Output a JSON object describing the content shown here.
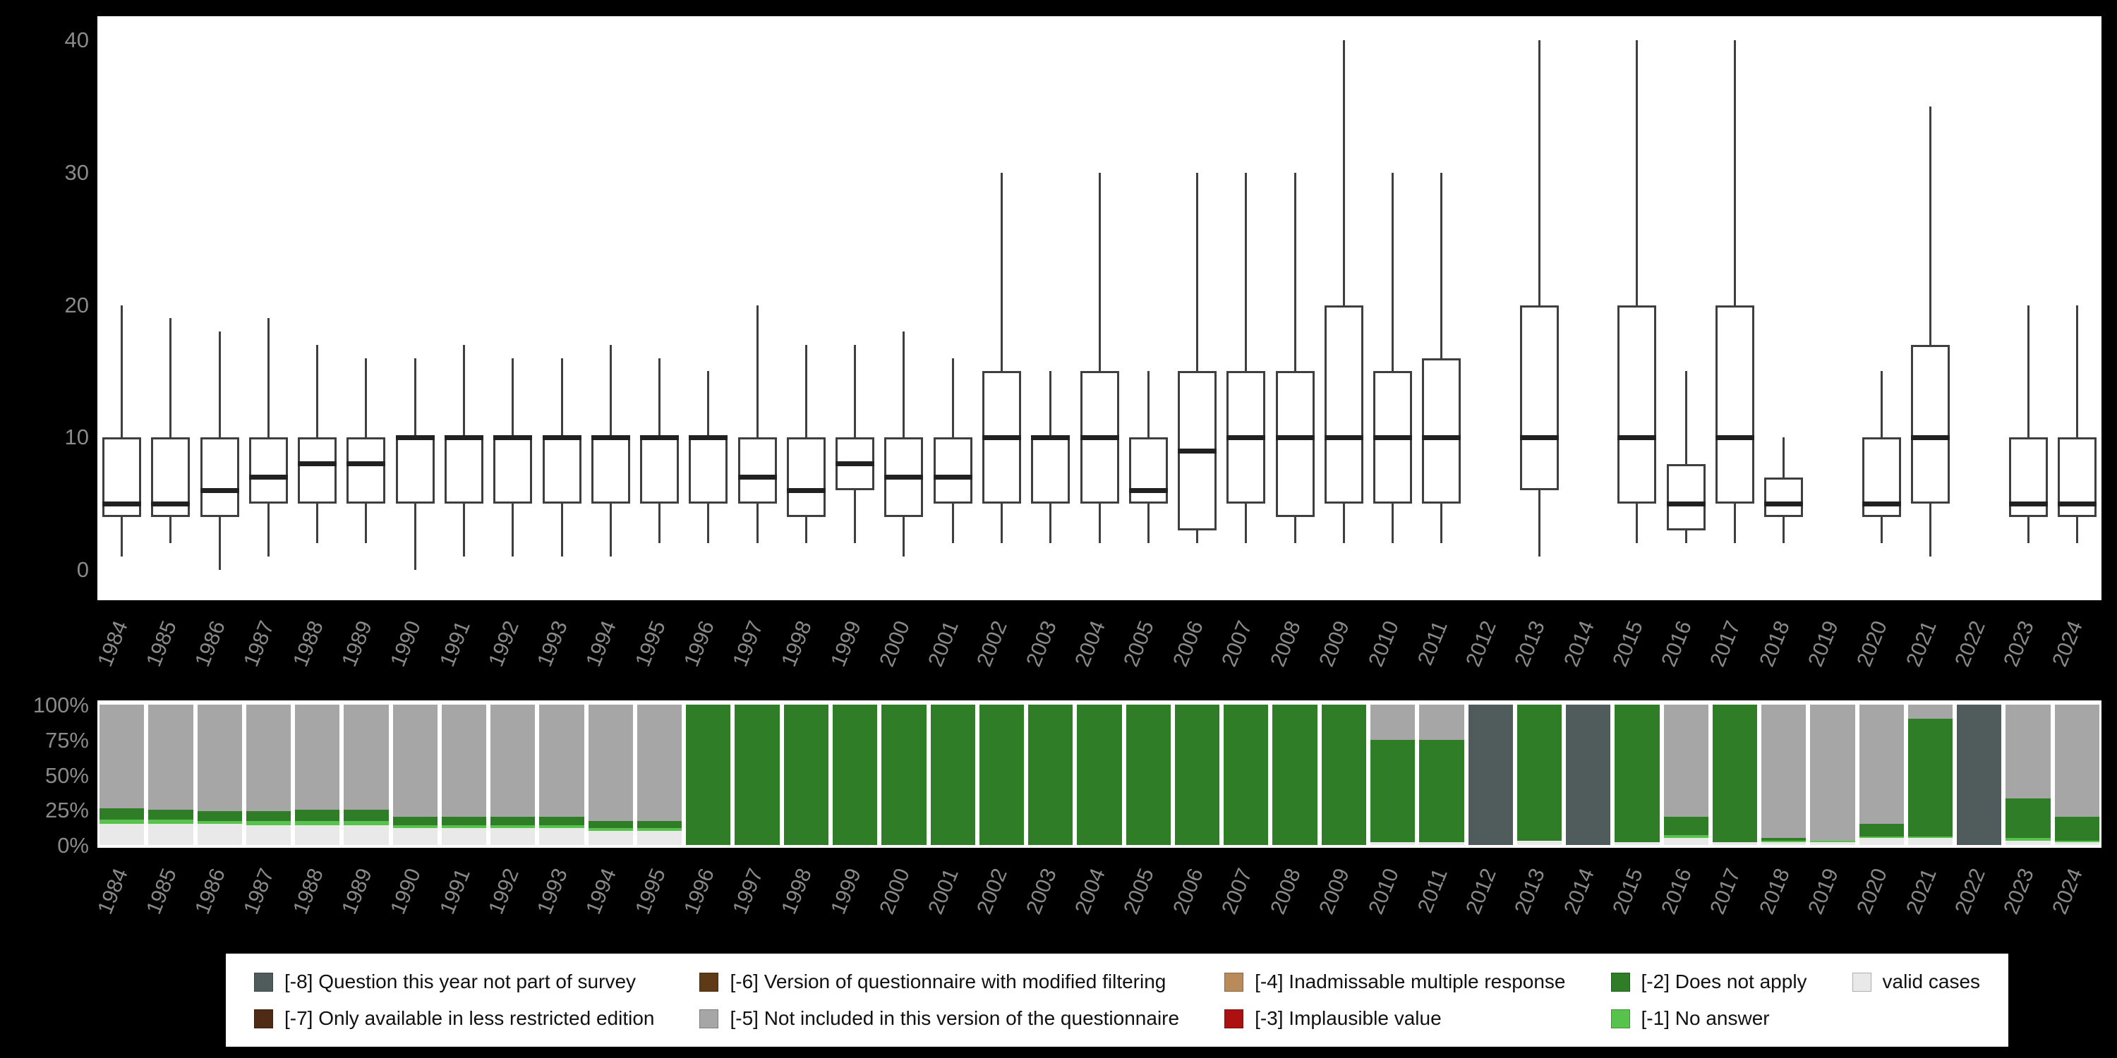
{
  "colors": {
    "figure_background": "#000000",
    "panel_background": "#ffffff",
    "axis_text": "#8a8a8a",
    "box_stroke": "#3f3f3f",
    "median_line": "#212121"
  },
  "chart_data": [
    {
      "type": "boxplot",
      "title": "",
      "xlabel": "",
      "ylabel": "",
      "ylim": [
        0,
        40
      ],
      "y_ticks": [
        0,
        10,
        20,
        30,
        40
      ],
      "grid": false,
      "x": [
        "1984",
        "1985",
        "1986",
        "1987",
        "1988",
        "1989",
        "1990",
        "1991",
        "1992",
        "1993",
        "1994",
        "1995",
        "1996",
        "1997",
        "1998",
        "1999",
        "2000",
        "2001",
        "2002",
        "2003",
        "2004",
        "2005",
        "2006",
        "2007",
        "2008",
        "2009",
        "2010",
        "2011",
        "2012",
        "2013",
        "2014",
        "2015",
        "2016",
        "2017",
        "2018",
        "2019",
        "2020",
        "2021",
        "2022",
        "2023",
        "2024"
      ],
      "box_values_order": [
        "whisker_low",
        "q1",
        "median",
        "q3",
        "whisker_high"
      ],
      "boxes": [
        [
          1,
          4,
          5,
          10,
          20
        ],
        [
          2,
          4,
          5,
          10,
          19
        ],
        [
          0,
          4,
          6,
          10,
          18
        ],
        [
          1,
          5,
          7,
          10,
          19
        ],
        [
          2,
          5,
          8,
          10,
          17
        ],
        [
          2,
          5,
          8,
          10,
          16
        ],
        [
          0,
          5,
          10,
          10,
          16
        ],
        [
          1,
          5,
          10,
          10,
          17
        ],
        [
          1,
          5,
          10,
          10,
          16
        ],
        [
          1,
          5,
          10,
          10,
          16
        ],
        [
          1,
          5,
          10,
          10,
          17
        ],
        [
          2,
          5,
          10,
          10,
          16
        ],
        [
          2,
          5,
          10,
          10,
          15
        ],
        [
          2,
          5,
          7,
          10,
          20
        ],
        [
          2,
          4,
          6,
          10,
          17
        ],
        [
          2,
          6,
          8,
          10,
          17
        ],
        [
          1,
          4,
          7,
          10,
          18
        ],
        [
          2,
          5,
          7,
          10,
          16
        ],
        [
          2,
          5,
          10,
          15,
          30
        ],
        [
          2,
          5,
          10,
          10,
          15
        ],
        [
          2,
          5,
          10,
          15,
          30
        ],
        [
          2,
          5,
          6,
          10,
          15
        ],
        [
          2,
          3,
          9,
          15,
          30
        ],
        [
          2,
          5,
          10,
          15,
          30
        ],
        [
          2,
          4,
          10,
          15,
          30
        ],
        [
          2,
          5,
          10,
          20,
          40
        ],
        [
          2,
          5,
          10,
          15,
          30
        ],
        [
          2,
          5,
          10,
          16,
          30
        ],
        null,
        [
          1,
          6,
          10,
          20,
          40
        ],
        null,
        [
          2,
          5,
          10,
          20,
          40
        ],
        [
          2,
          3,
          5,
          8,
          15
        ],
        [
          2,
          5,
          10,
          20,
          40
        ],
        [
          2,
          4,
          5,
          7,
          10
        ],
        null,
        [
          2,
          4,
          5,
          10,
          15
        ],
        [
          1,
          5,
          10,
          17,
          35
        ],
        null,
        [
          2,
          4,
          5,
          10,
          20
        ],
        [
          2,
          4,
          5,
          10,
          20
        ]
      ]
    },
    {
      "type": "bar",
      "stacked": true,
      "unit": "percent",
      "title": "",
      "xlabel": "",
      "ylabel": "",
      "ylim": [
        0,
        100
      ],
      "y_ticks": [
        "0%",
        "25%",
        "50%",
        "75%",
        "100%"
      ],
      "x": [
        "1984",
        "1985",
        "1986",
        "1987",
        "1988",
        "1989",
        "1990",
        "1991",
        "1992",
        "1993",
        "1994",
        "1995",
        "1996",
        "1997",
        "1998",
        "1999",
        "2000",
        "2001",
        "2002",
        "2003",
        "2004",
        "2005",
        "2006",
        "2007",
        "2008",
        "2009",
        "2010",
        "2011",
        "2012",
        "2013",
        "2014",
        "2015",
        "2016",
        "2017",
        "2018",
        "2019",
        "2020",
        "2021",
        "2022",
        "2023",
        "2024"
      ],
      "stack_order": "bottom_to_top",
      "series": [
        {
          "name": "valid cases",
          "color": "#e9e9e9",
          "values": [
            15,
            15,
            15,
            14,
            14,
            14,
            12,
            12,
            12,
            12,
            10,
            10,
            0,
            0,
            0,
            0,
            0,
            0,
            0,
            0,
            0,
            0,
            0,
            0,
            0,
            0,
            2,
            2,
            0,
            3,
            0,
            2,
            5,
            2,
            2,
            2,
            5,
            5,
            0,
            3,
            2
          ]
        },
        {
          "name": "[-1] No answer",
          "color": "#57c34c",
          "values": [
            3,
            3,
            2,
            3,
            3,
            3,
            2,
            2,
            2,
            2,
            2,
            2,
            0,
            0,
            0,
            0,
            0,
            0,
            0,
            0,
            0,
            0,
            0,
            0,
            0,
            0,
            0,
            0,
            0,
            0,
            0,
            0,
            2,
            0,
            1,
            1,
            1,
            1,
            0,
            2,
            1
          ]
        },
        {
          "name": "[-2] Does not apply",
          "color": "#2f7d26",
          "values": [
            8,
            7,
            7,
            7,
            8,
            8,
            6,
            6,
            6,
            6,
            5,
            5,
            100,
            100,
            100,
            100,
            100,
            100,
            100,
            100,
            100,
            100,
            100,
            100,
            100,
            100,
            73,
            73,
            0,
            97,
            0,
            98,
            13,
            98,
            2,
            0,
            9,
            84,
            0,
            28,
            17
          ]
        },
        {
          "name": "[-5] Not included in this version of the questionnaire",
          "color": "#a6a6a6",
          "values": [
            74,
            75,
            76,
            76,
            75,
            75,
            80,
            80,
            80,
            80,
            83,
            83,
            0,
            0,
            0,
            0,
            0,
            0,
            0,
            0,
            0,
            0,
            0,
            0,
            0,
            0,
            25,
            25,
            0,
            0,
            0,
            0,
            80,
            0,
            95,
            97,
            85,
            10,
            0,
            67,
            80
          ]
        },
        {
          "name": "[-8] Question this year not part of survey",
          "color": "#505c5c",
          "values": [
            0,
            0,
            0,
            0,
            0,
            0,
            0,
            0,
            0,
            0,
            0,
            0,
            0,
            0,
            0,
            0,
            0,
            0,
            0,
            0,
            0,
            0,
            0,
            0,
            0,
            0,
            0,
            0,
            100,
            0,
            100,
            0,
            0,
            0,
            0,
            0,
            0,
            0,
            100,
            0,
            0
          ]
        }
      ]
    }
  ],
  "legend": {
    "items": [
      {
        "label": "[-8] Question this year not part of survey",
        "color": "#505c5c"
      },
      {
        "label": "[-7] Only available in less restricted edition",
        "color": "#4f2a14"
      },
      {
        "label": "[-6] Version of questionnaire with modified filtering",
        "color": "#5e3a17"
      },
      {
        "label": "[-5] Not included in this version of the questionnaire",
        "color": "#a6a6a6"
      },
      {
        "label": "[-4] Inadmissable multiple response",
        "color": "#b98a5a"
      },
      {
        "label": "[-3] Implausible value",
        "color": "#ad1010"
      },
      {
        "label": "[-2] Does not apply",
        "color": "#2f7d26"
      },
      {
        "label": "[-1] No answer",
        "color": "#57c34c"
      },
      {
        "label": "valid cases",
        "color": "#e9e9e9"
      }
    ]
  }
}
